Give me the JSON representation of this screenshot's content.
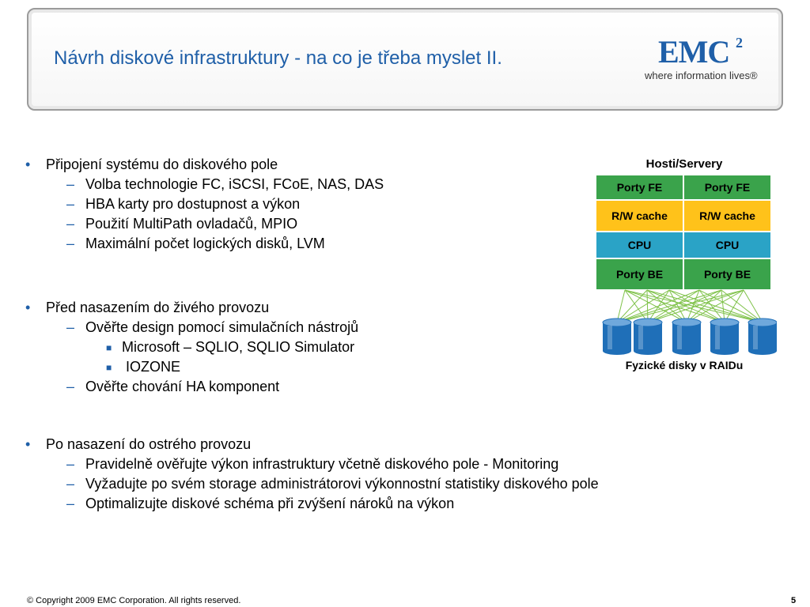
{
  "slide": {
    "title": "Návrh diskové infrastruktury - na co je třeba myslet II.",
    "logo": {
      "brand": "EMC",
      "superscript": "2",
      "tagline": "where information lives®"
    },
    "accent_color": "#1f5fa8"
  },
  "sections": [
    {
      "heading": "Připojení systému do diskového pole",
      "items": [
        {
          "text": "Volba technologie FC, iSCSI, FCoE, NAS, DAS"
        },
        {
          "text": "HBA karty pro dostupnost a výkon"
        },
        {
          "text": "Použití MultiPath ovladačů, MPIO"
        },
        {
          "text": "Maximální počet logických disků, LVM"
        }
      ]
    },
    {
      "heading": "Před nasazením do živého provozu",
      "items": [
        {
          "text": "Ověřte design pomocí simulačních nástrojů",
          "subitems": [
            "Microsoft – SQLIO, SQLIO Simulator",
            " IOZONE"
          ]
        },
        {
          "text": "Ověřte chování HA komponent"
        }
      ]
    },
    {
      "heading": "Po nasazení do ostrého provozu",
      "items": [
        {
          "text": "Pravidelně ověřujte výkon infrastruktury včetně diskového pole - Monitoring"
        },
        {
          "text": "Vyžadujte po svém storage administrátorovi výkonnostní statistiky diskového pole"
        },
        {
          "text": "Optimalizujte diskové schéma při zvýšení nároků na výkon"
        }
      ]
    }
  ],
  "diagram": {
    "top_label": "Hosti/Servery",
    "rows": [
      {
        "cells": [
          "Porty FE",
          "Porty FE"
        ],
        "color": "#3aa34b"
      },
      {
        "cells": [
          "R/W cache",
          "R/W cache"
        ],
        "color": "#ffc21a"
      },
      {
        "cells": [
          "CPU",
          "CPU"
        ],
        "color": "#2aa3c6"
      },
      {
        "cells": [
          "Porty BE",
          "Porty BE"
        ],
        "color": "#3aa34b"
      }
    ],
    "disk_color": "#1f6fb8",
    "line_color": "#7fc24a",
    "bottom_label": "Fyzické disky v RAIDu"
  },
  "footer": {
    "copyright": "© Copyright 2009 EMC Corporation. All rights reserved.",
    "page_number": "5"
  }
}
